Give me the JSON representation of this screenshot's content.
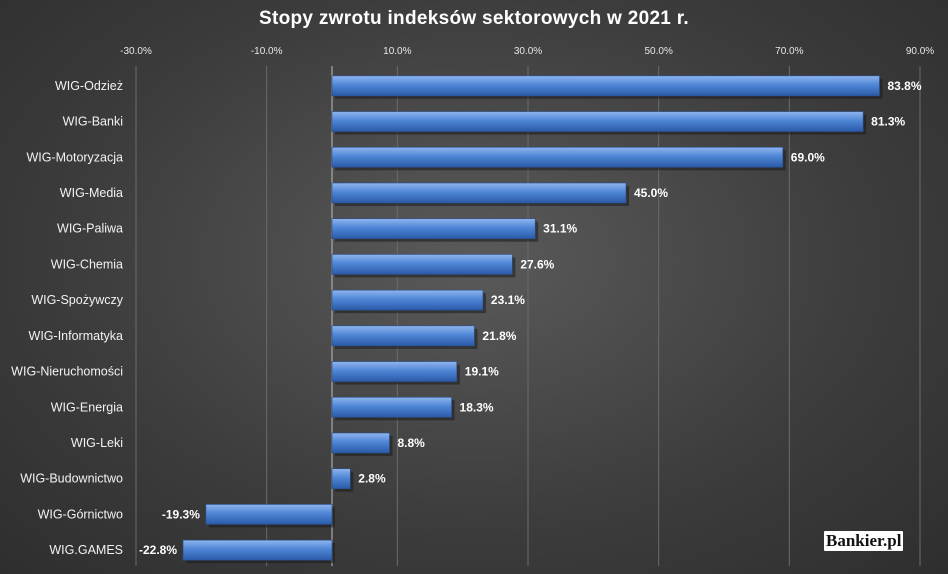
{
  "title": "Stopy zwrotu indeksów sektorowych w 2021 r.",
  "logo": "Bankier.pl",
  "colors": {
    "bar_top": "#8fb5ee",
    "bar_mid": "#4f86d6",
    "bar_bottom": "#2a5aa8",
    "gridline": "#6b6b6b"
  },
  "chart_data": {
    "type": "bar",
    "orientation": "horizontal",
    "title": "Stopy zwrotu indeksów sektorowych w 2021 r.",
    "xlim": [
      -30,
      90
    ],
    "xticks": [
      -30,
      -10,
      10,
      30,
      50,
      70,
      90
    ],
    "xtick_labels": [
      "-30.0%",
      "-10.0%",
      "10.0%",
      "30.0%",
      "50.0%",
      "70.0%",
      "90.0%"
    ],
    "axis_position": "top",
    "grid": true,
    "categories": [
      "WIG-Odzież",
      "WIG-Banki",
      "WIG-Motoryzacja",
      "WIG-Media",
      "WIG-Paliwa",
      "WIG-Chemia",
      "WIG-Spożywczy",
      "WIG-Informatyka",
      "WIG-Nieruchomości",
      "WIG-Energia",
      "WIG-Leki",
      "WIG-Budownictwo",
      "WIG-Górnictwo",
      "WIG.GAMES"
    ],
    "values": [
      83.8,
      81.3,
      69.0,
      45.0,
      31.1,
      27.6,
      23.1,
      21.8,
      19.1,
      18.3,
      8.8,
      2.8,
      -19.3,
      -22.8
    ],
    "value_labels": [
      "83.8%",
      "81.3%",
      "69.0%",
      "45.0%",
      "31.1%",
      "27.6%",
      "23.1%",
      "21.8%",
      "19.1%",
      "18.3%",
      "8.8%",
      "2.8%",
      "-19.3%",
      "-22.8%"
    ]
  }
}
